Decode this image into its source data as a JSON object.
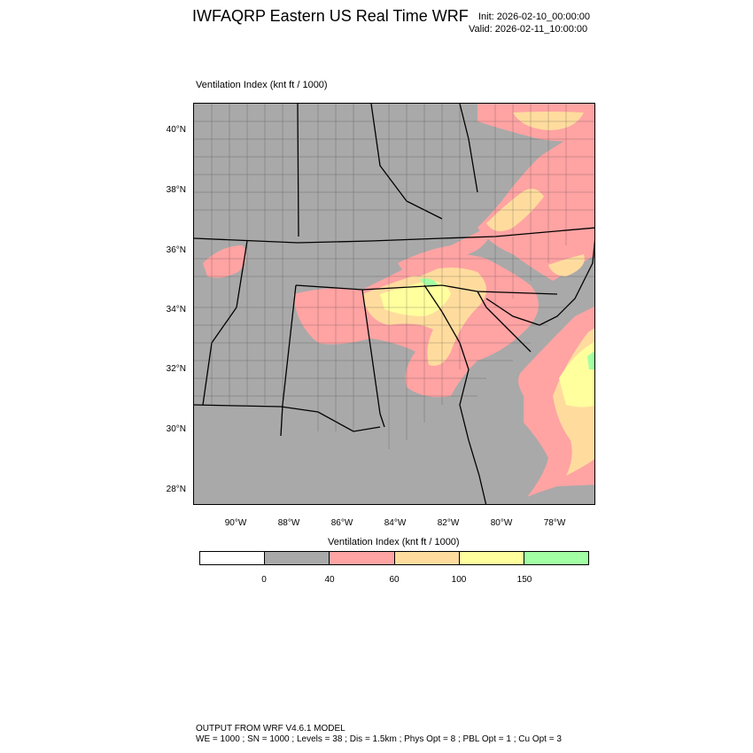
{
  "header": {
    "title": "IWFAQRP Eastern US Real Time WRF",
    "init": "Init: 2026-02-10_00:00:00",
    "valid": "Valid: 2026-02-11_10:00:00"
  },
  "field_label": "Ventilation Index   (knt ft / 1000)",
  "map": {
    "lat_labels": [
      "40°N",
      "38°N",
      "36°N",
      "34°N",
      "32°N",
      "30°N",
      "28°N"
    ],
    "lon_labels": [
      "90°W",
      "88°W",
      "86°W",
      "84°W",
      "82°W",
      "80°W",
      "78°W"
    ],
    "colors": {
      "land_low": "#a9a9a9",
      "ocean": "#a9a9a9",
      "pink": "#ffa3a3",
      "peach": "#ffdc9e",
      "yellow": "#ffff9e",
      "green": "#a3ffa3"
    }
  },
  "colorbar": {
    "title": "Ventilation Index  (knt ft / 1000)",
    "colors": [
      "#ffffff",
      "#a9a9a9",
      "#ffa3a3",
      "#ffdc9e",
      "#ffff9e",
      "#a3ffa3"
    ],
    "ticks": [
      "0",
      "40",
      "60",
      "100",
      "150"
    ]
  },
  "footer": {
    "line1": "OUTPUT FROM WRF V4.6.1 MODEL",
    "line2": "WE = 1000 ; SN = 1000 ; Levels = 38 ; Dis = 1.5km ; Phys Opt = 8 ; PBL Opt = 1 ; Cu Opt = 3"
  }
}
